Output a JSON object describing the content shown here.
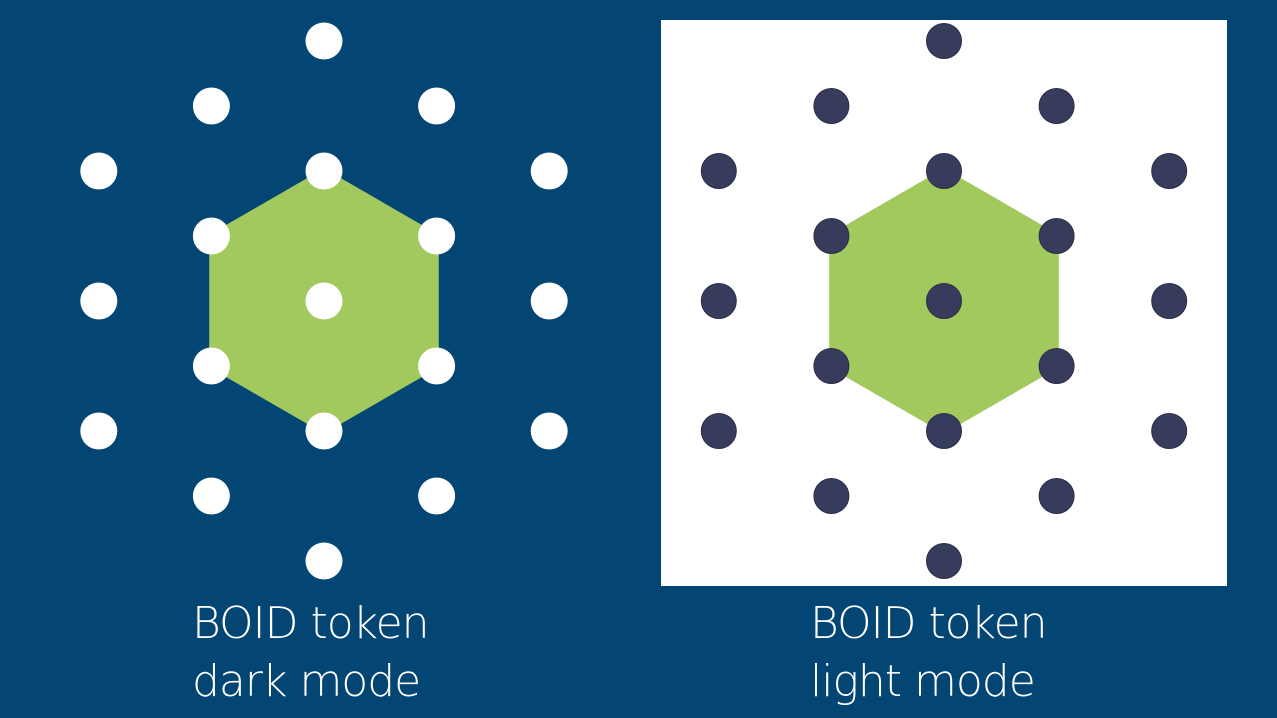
{
  "dark": {
    "caption_line1": "BOID token",
    "caption_line2": "dark mode",
    "background_color": "#034573",
    "dot_color": "#ffffff",
    "hexagon_color": "#a2c95d"
  },
  "light": {
    "caption_line1": "BOID token",
    "caption_line2": "light mode",
    "background_color": "#ffffff",
    "dot_color": "#383c5c",
    "hexagon_color": "#a2c95d"
  }
}
